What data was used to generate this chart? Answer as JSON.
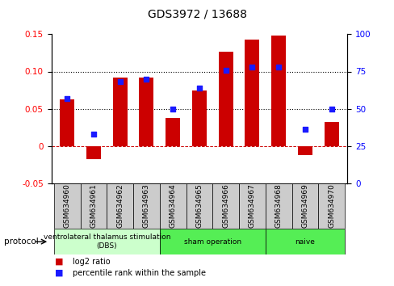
{
  "title": "GDS3972 / 13688",
  "samples": [
    "GSM634960",
    "GSM634961",
    "GSM634962",
    "GSM634963",
    "GSM634964",
    "GSM634965",
    "GSM634966",
    "GSM634967",
    "GSM634968",
    "GSM634969",
    "GSM634970"
  ],
  "log2_ratio": [
    0.063,
    -0.018,
    0.092,
    0.092,
    0.037,
    0.075,
    0.127,
    0.143,
    0.148,
    -0.012,
    0.032
  ],
  "percentile_rank": [
    57,
    33,
    68,
    70,
    50,
    64,
    76,
    78,
    78,
    36,
    50
  ],
  "bar_color": "#cc0000",
  "dot_color": "#1a1aff",
  "ylim_left": [
    -0.05,
    0.15
  ],
  "ylim_right": [
    0,
    100
  ],
  "yticks_left": [
    -0.05,
    0.0,
    0.05,
    0.1,
    0.15
  ],
  "yticks_right": [
    0,
    25,
    50,
    75,
    100
  ],
  "hlines": [
    0.05,
    0.1
  ],
  "protocols": [
    {
      "label": "ventrolateral thalamus stimulation\n(DBS)",
      "start": 0,
      "end": 3,
      "color": "#ccffcc"
    },
    {
      "label": "sham operation",
      "start": 4,
      "end": 7,
      "color": "#55ee55"
    },
    {
      "label": "naive",
      "start": 8,
      "end": 10,
      "color": "#55ee55"
    }
  ],
  "protocol_label": "protocol",
  "legend_items": [
    {
      "label": "log2 ratio",
      "color": "#cc0000"
    },
    {
      "label": "percentile rank within the sample",
      "color": "#1a1aff"
    }
  ],
  "bar_width": 0.55,
  "bg_color": "#ffffff",
  "sample_bg": "#cccccc",
  "title_fontsize": 10,
  "tick_fontsize": 7.5,
  "label_fontsize": 6.5,
  "protocol_fontsize": 6.5,
  "legend_fontsize": 7
}
